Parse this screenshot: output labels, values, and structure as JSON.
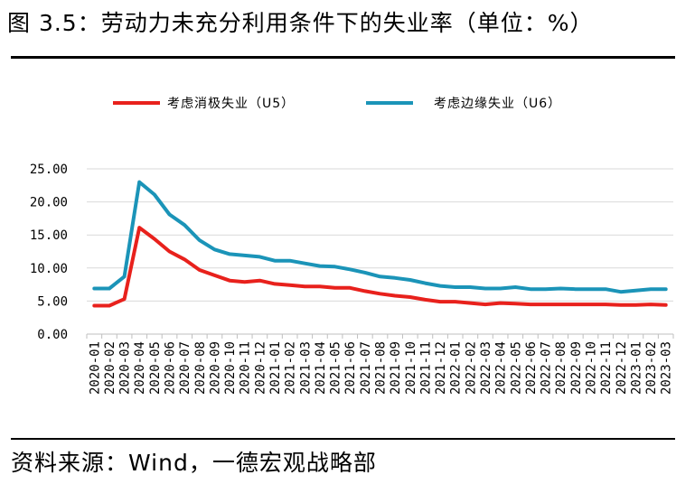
{
  "figure": {
    "title": "图 3.5：劳动力未充分利用条件下的失业率（单位：%）",
    "source": "资料来源：Wind，一德宏观战略部"
  },
  "chart_data": {
    "type": "line",
    "title": "劳动力未充分利用条件下的失业率（单位：%）",
    "xlabel": "",
    "ylabel": "",
    "ylim": [
      0,
      25
    ],
    "yticks": [
      "0.00",
      "5.00",
      "10.00",
      "15.00",
      "20.00",
      "25.00"
    ],
    "grid": true,
    "legend_position": "top",
    "categories": [
      "2020-01",
      "2020-02",
      "2020-03",
      "2020-04",
      "2020-05",
      "2020-06",
      "2020-07",
      "2020-08",
      "2020-09",
      "2020-10",
      "2020-11",
      "2020-12",
      "2021-01",
      "2021-02",
      "2021-03",
      "2021-04",
      "2021-05",
      "2021-06",
      "2021-07",
      "2021-08",
      "2021-09",
      "2021-10",
      "2021-11",
      "2021-12",
      "2022-01",
      "2022-02",
      "2022-03",
      "2022-04",
      "2022-05",
      "2022-06",
      "2022-07",
      "2022-08",
      "2022-09",
      "2022-10",
      "2022-11",
      "2022-12",
      "2023-01",
      "2023-02",
      "2023-03"
    ],
    "series": [
      {
        "name": "考虑消极失业（U5）",
        "color": "#e8211c",
        "values": [
          4.3,
          4.3,
          5.3,
          16.1,
          14.4,
          12.5,
          11.3,
          9.7,
          8.9,
          8.1,
          7.9,
          8.1,
          7.6,
          7.4,
          7.2,
          7.2,
          7.0,
          7.0,
          6.5,
          6.1,
          5.8,
          5.6,
          5.2,
          4.9,
          4.9,
          4.7,
          4.5,
          4.7,
          4.6,
          4.5,
          4.5,
          4.5,
          4.5,
          4.5,
          4.5,
          4.4,
          4.4,
          4.5,
          4.4
        ]
      },
      {
        "name": "考虑边缘失业（U6）",
        "color": "#1b94b8",
        "values": [
          6.9,
          6.9,
          8.7,
          23.0,
          21.1,
          18.1,
          16.5,
          14.2,
          12.8,
          12.1,
          11.9,
          11.7,
          11.1,
          11.1,
          10.7,
          10.3,
          10.2,
          9.8,
          9.3,
          8.7,
          8.5,
          8.2,
          7.7,
          7.3,
          7.1,
          7.1,
          6.9,
          6.9,
          7.1,
          6.8,
          6.8,
          6.9,
          6.8,
          6.8,
          6.8,
          6.4,
          6.6,
          6.8,
          6.8
        ]
      }
    ]
  }
}
